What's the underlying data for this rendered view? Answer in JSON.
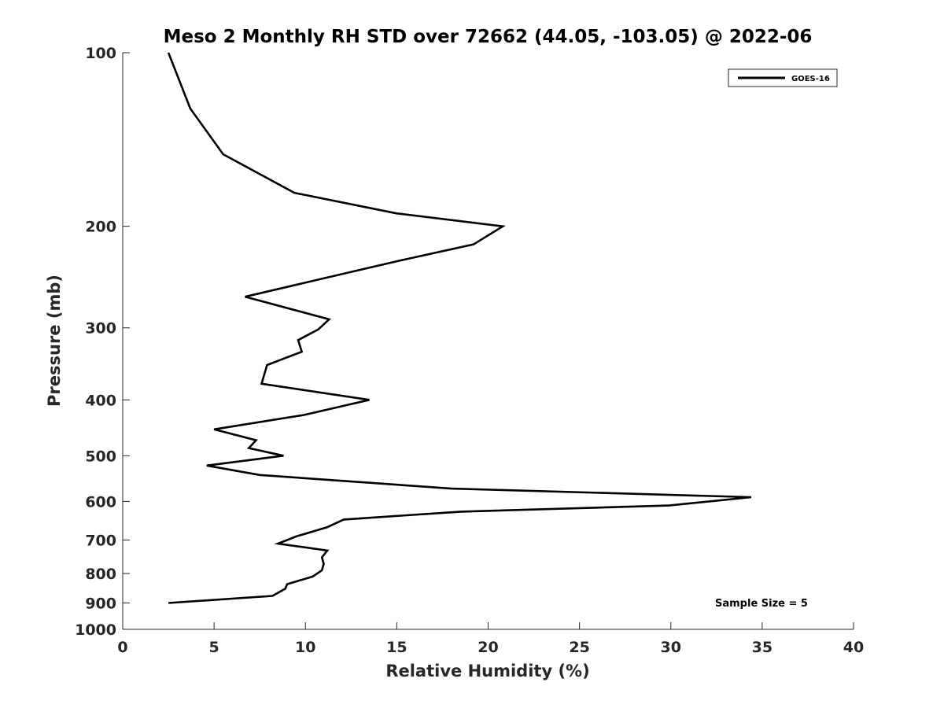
{
  "chart_data": {
    "type": "line",
    "title": "Meso 2 Monthly RH STD over 72662 (44.05, -103.05) @ 2022-06",
    "xlabel": "Relative Humidity (%)",
    "ylabel": "Pressure (mb)",
    "xlim": [
      0,
      40
    ],
    "ylim": [
      100,
      1000
    ],
    "y_scale": "log",
    "y_reversed": true,
    "xticks": [
      0,
      5,
      10,
      15,
      20,
      25,
      30,
      35,
      40
    ],
    "yticks": [
      100,
      200,
      300,
      400,
      500,
      600,
      700,
      800,
      900,
      1000
    ],
    "grid": false,
    "legend_position": "top-right",
    "series": [
      {
        "name": "GOES-16",
        "color": "#000000",
        "points": [
          [
            2.5,
            100
          ],
          [
            3.7,
            125
          ],
          [
            5.5,
            150
          ],
          [
            9.4,
            175
          ],
          [
            15.0,
            190
          ],
          [
            20.8,
            200
          ],
          [
            19.2,
            215
          ],
          [
            15.0,
            230
          ],
          [
            6.7,
            265
          ],
          [
            11.3,
            290
          ],
          [
            10.7,
            302
          ],
          [
            9.6,
            315
          ],
          [
            9.8,
            330
          ],
          [
            7.9,
            348
          ],
          [
            7.6,
            375
          ],
          [
            13.5,
            400
          ],
          [
            9.9,
            425
          ],
          [
            5.0,
            450
          ],
          [
            7.3,
            470
          ],
          [
            6.9,
            485
          ],
          [
            8.8,
            500
          ],
          [
            4.6,
            520
          ],
          [
            7.5,
            540
          ],
          [
            18.0,
            570
          ],
          [
            34.4,
            590
          ],
          [
            29.9,
            610
          ],
          [
            18.5,
            625
          ],
          [
            12.1,
            645
          ],
          [
            11.2,
            665
          ],
          [
            9.5,
            690
          ],
          [
            8.5,
            710
          ],
          [
            11.2,
            730
          ],
          [
            10.9,
            750
          ],
          [
            11.0,
            770
          ],
          [
            10.9,
            790
          ],
          [
            10.4,
            810
          ],
          [
            9.0,
            835
          ],
          [
            8.9,
            850
          ],
          [
            8.2,
            875
          ],
          [
            2.5,
            900
          ]
        ]
      }
    ],
    "annotations": [
      {
        "text": "Sample Size = 5"
      }
    ]
  }
}
